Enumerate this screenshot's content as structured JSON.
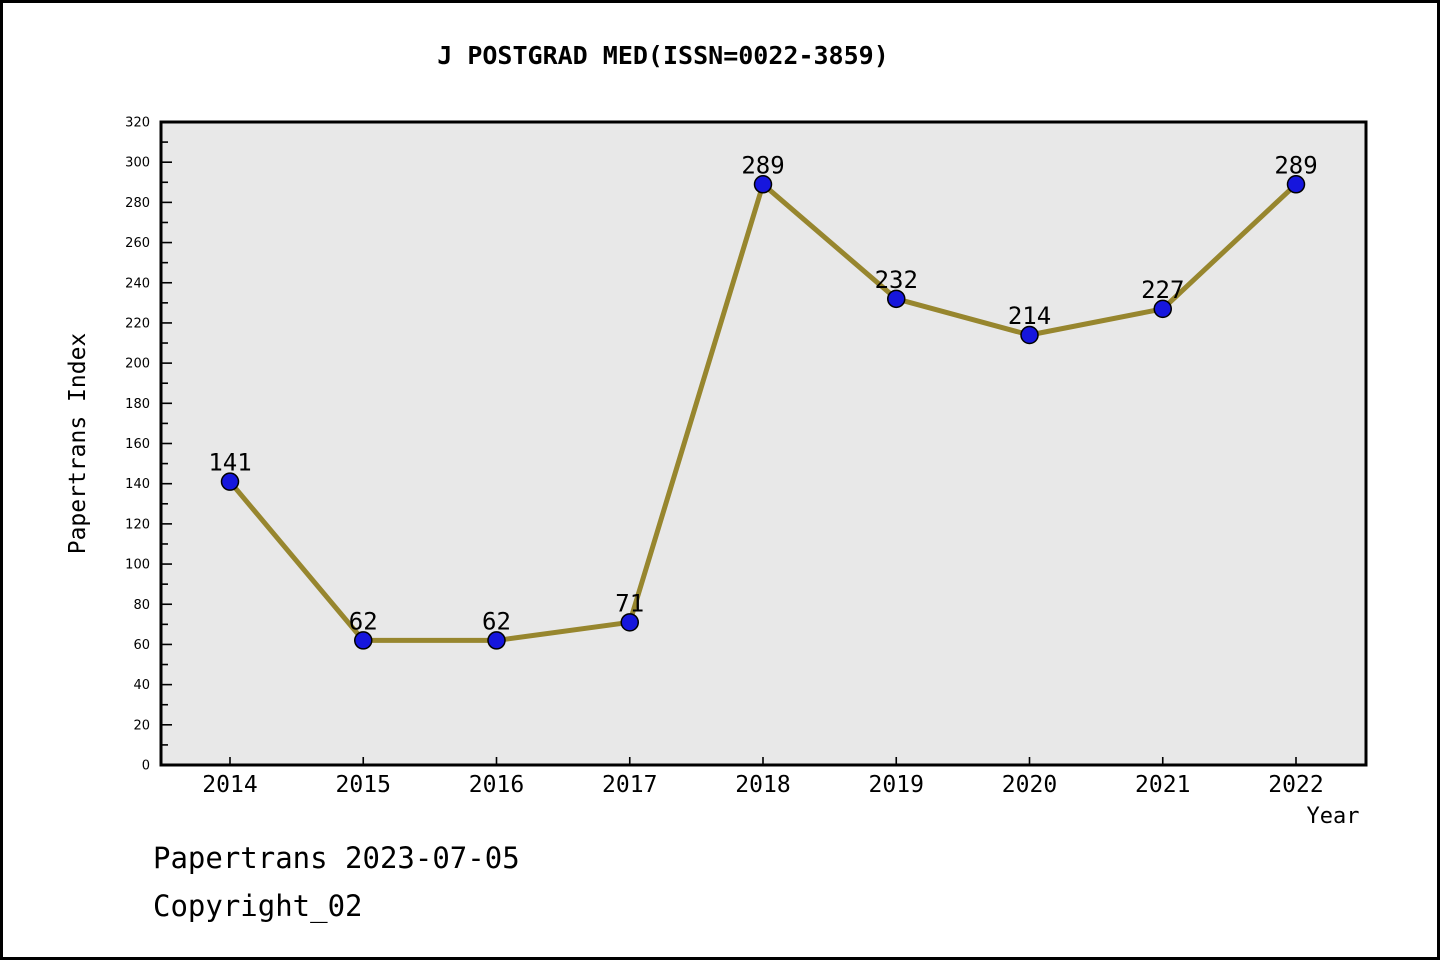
{
  "title": "J POSTGRAD MED(ISSN=0022-3859)",
  "footer": {
    "line1": "Papertrans 2023-07-05",
    "line2": "Copyright_02"
  },
  "chart_data": {
    "type": "line",
    "title": "J POSTGRAD MED(ISSN=0022-3859)",
    "x": [
      2014,
      2015,
      2016,
      2017,
      2018,
      2019,
      2020,
      2021,
      2022
    ],
    "values": [
      141,
      62,
      62,
      71,
      289,
      232,
      214,
      227,
      289
    ],
    "data_labels": [
      "141",
      "62",
      "62",
      "71",
      "289",
      "232",
      "214",
      "227",
      "289"
    ],
    "xlabel": "Year",
    "ylabel": "Papertrans Index",
    "ylim": [
      0,
      320
    ],
    "ytick_step": 20,
    "yminor_step": 10,
    "grid": false,
    "legend_position": "none",
    "colors": {
      "line": "#97862e",
      "marker": "#1616dd",
      "marker_edge": "#000000",
      "plot_background": "#e8e8e8",
      "axis": "#000000",
      "text": "#000000"
    }
  }
}
